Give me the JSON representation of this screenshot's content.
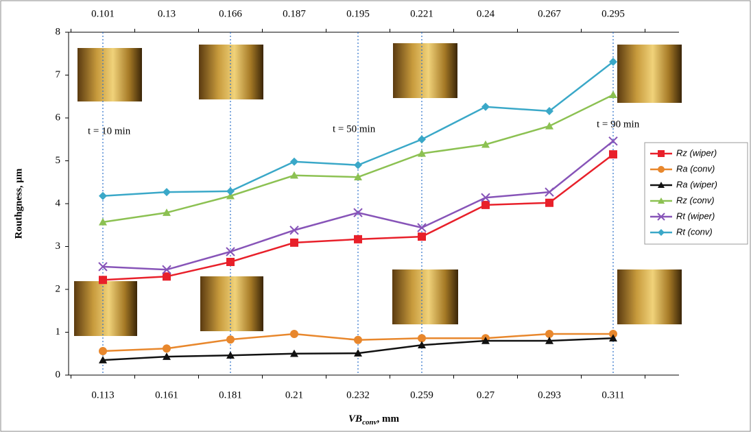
{
  "chart_data": {
    "type": "line",
    "y_label": "Routhgness, μm",
    "x_label": {
      "main": "VB",
      "sub": "conv",
      "unit": ", mm"
    },
    "categories": [
      "0.113",
      "0.161",
      "0.181",
      "0.21",
      "0.232",
      "0.259",
      "0.27",
      "0.293",
      "0.311"
    ],
    "top_categories": [
      "0.101",
      "0.13",
      "0.166",
      "0.187",
      "0.195",
      "0.221",
      "0.24",
      "0.267",
      "0.295"
    ],
    "annotations": [
      "t = 10 min",
      "t = 50 min",
      "t = 90 min"
    ],
    "ylim": [
      0,
      8
    ],
    "yticks": [
      0,
      1,
      2,
      3,
      4,
      5,
      6,
      7,
      8
    ],
    "grid": false,
    "legend": "right",
    "series": [
      {
        "name": "Rz (wiper)",
        "color": "#e8202a",
        "marker": "square",
        "values": [
          2.22,
          2.3,
          2.64,
          3.09,
          3.17,
          3.23,
          3.97,
          4.02,
          5.15
        ]
      },
      {
        "name": "Ra (conv)",
        "color": "#e8872c",
        "marker": "circle",
        "values": [
          0.56,
          0.62,
          0.83,
          0.96,
          0.82,
          0.86,
          0.86,
          0.96,
          0.96
        ]
      },
      {
        "name": "Ra (wiper)",
        "color": "#111111",
        "marker": "triangle",
        "values": [
          0.35,
          0.43,
          0.46,
          0.5,
          0.51,
          0.7,
          0.8,
          0.8,
          0.86
        ]
      },
      {
        "name": "Rz (conv)",
        "color": "#8cc152",
        "marker": "triangle",
        "values": [
          3.57,
          3.79,
          4.18,
          4.66,
          4.62,
          5.17,
          5.38,
          5.81,
          6.54
        ]
      },
      {
        "name": "Rt (wiper)",
        "color": "#8754b8",
        "marker": "x",
        "values": [
          2.53,
          2.46,
          2.88,
          3.38,
          3.79,
          3.44,
          4.14,
          4.27,
          5.46
        ]
      },
      {
        "name": "Rt (conv)",
        "color": "#3aa8c8",
        "marker": "diamond",
        "values": [
          4.18,
          4.27,
          4.29,
          4.98,
          4.9,
          5.5,
          6.26,
          6.16,
          7.31
        ]
      }
    ]
  }
}
